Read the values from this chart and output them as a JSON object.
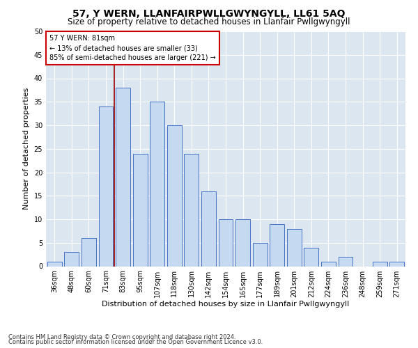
{
  "title": "57, Y WERN, LLANFAIRPWLLGWYNGYLL, LL61 5AQ",
  "subtitle": "Size of property relative to detached houses in Llanfair Pwllgwyngyll",
  "xlabel": "Distribution of detached houses by size in Llanfair Pwllgwyngyll",
  "ylabel": "Number of detached properties",
  "footnote1": "Contains HM Land Registry data © Crown copyright and database right 2024.",
  "footnote2": "Contains public sector information licensed under the Open Government Licence v3.0.",
  "categories": [
    "36sqm",
    "48sqm",
    "60sqm",
    "71sqm",
    "83sqm",
    "95sqm",
    "107sqm",
    "118sqm",
    "130sqm",
    "142sqm",
    "154sqm",
    "165sqm",
    "177sqm",
    "189sqm",
    "201sqm",
    "212sqm",
    "224sqm",
    "236sqm",
    "248sqm",
    "259sqm",
    "271sqm"
  ],
  "bar_values": [
    1,
    3,
    6,
    34,
    38,
    24,
    35,
    30,
    24,
    16,
    10,
    10,
    5,
    9,
    8,
    4,
    1,
    2,
    0,
    1,
    1
  ],
  "bar_color": "#c5d9f1",
  "bar_edge_color": "#4472c4",
  "bar_edge_width": 0.7,
  "vline_index": 4,
  "vline_color": "#9b0000",
  "ylim": [
    0,
    50
  ],
  "yticks": [
    0,
    5,
    10,
    15,
    20,
    25,
    30,
    35,
    40,
    45,
    50
  ],
  "annotation_text": "57 Y WERN: 81sqm\n← 13% of detached houses are smaller (33)\n85% of semi-detached houses are larger (221) →",
  "annotation_box_facecolor": "#ffffff",
  "annotation_box_edgecolor": "#cc0000",
  "plot_bg_color": "#dce6f1",
  "title_fontsize": 10,
  "subtitle_fontsize": 8.5,
  "xlabel_fontsize": 8,
  "ylabel_fontsize": 8,
  "tick_fontsize": 7,
  "annotation_fontsize": 7,
  "footnote_fontsize": 6
}
